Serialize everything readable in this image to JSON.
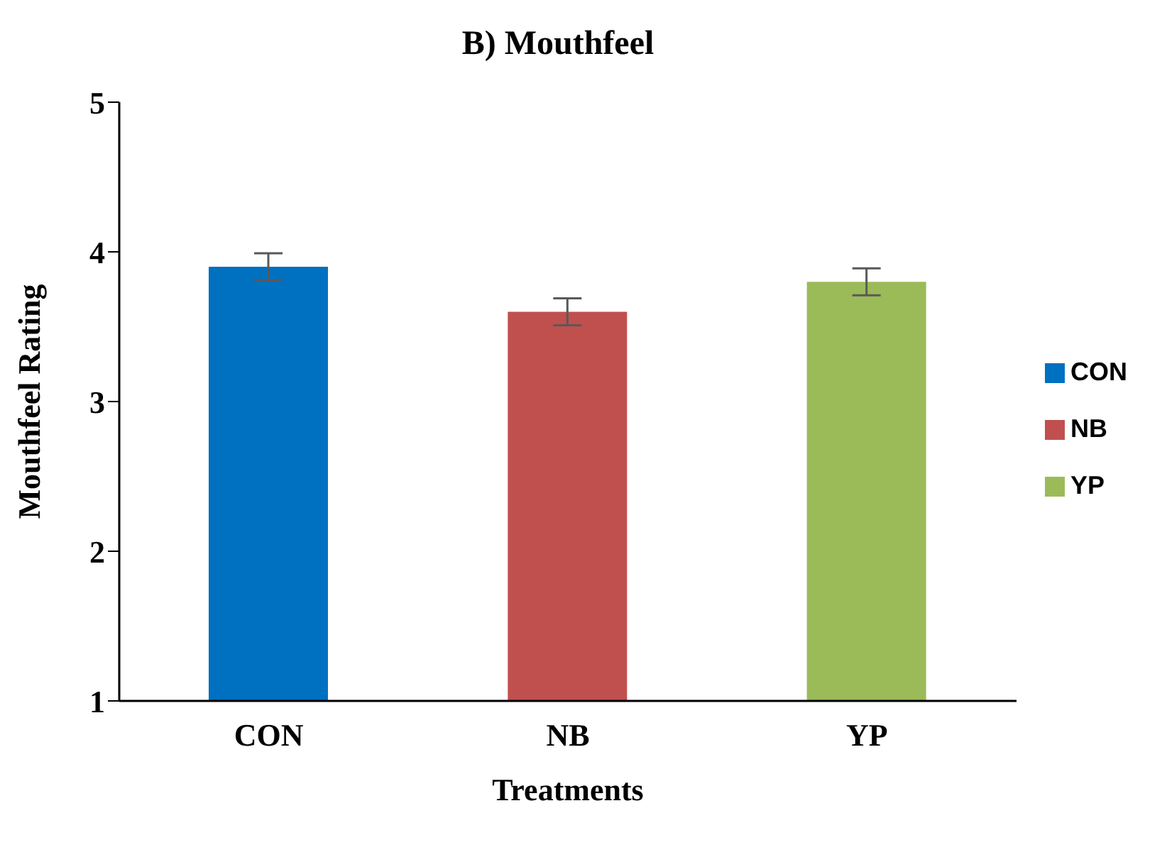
{
  "chart_data": {
    "type": "bar",
    "title": "B)  Mouthfeel",
    "xlabel": "Treatments",
    "ylabel": "Mouthfeel  Rating",
    "categories": [
      "CON",
      "NB",
      "YP"
    ],
    "stacked": true,
    "series": [
      {
        "name": "CON",
        "color": "#0070c0",
        "values": [
          3.9,
          null,
          null
        ],
        "errors": [
          0.09,
          null,
          null
        ]
      },
      {
        "name": "NB",
        "color": "#c0504d",
        "values": [
          null,
          3.6,
          null
        ],
        "errors": [
          null,
          0.09,
          null
        ]
      },
      {
        "name": "YP",
        "color": "#9bbb59",
        "values": [
          null,
          null,
          3.8
        ],
        "errors": [
          null,
          null,
          0.09
        ]
      }
    ],
    "ylim": [
      1,
      5
    ],
    "yticks": [
      1,
      2,
      3,
      4,
      5
    ],
    "grid": false,
    "legend": "right"
  }
}
